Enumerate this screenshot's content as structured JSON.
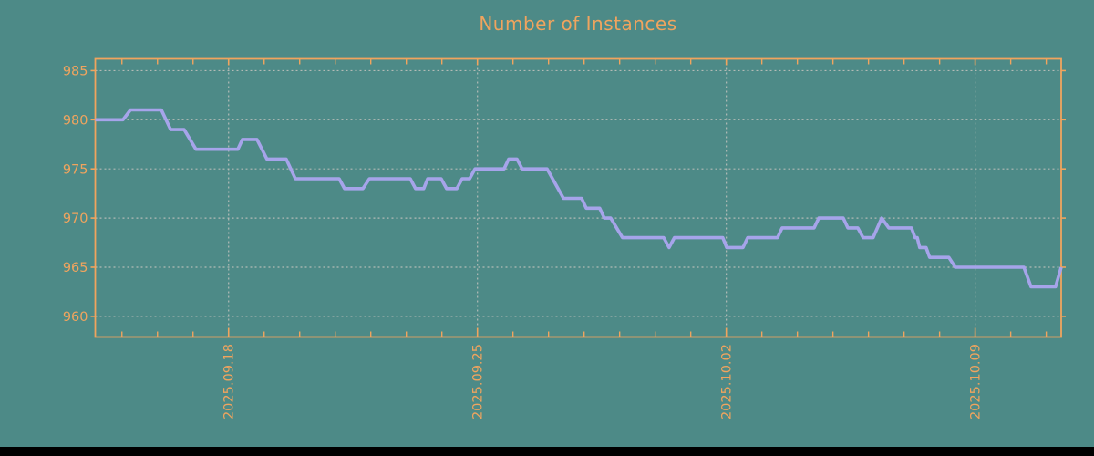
{
  "title": "Number of Instances",
  "colors": {
    "background": "#4d8a87",
    "accent": "#f0a45e",
    "line": "#a6a4ea",
    "grid": "#b9beb9",
    "footer_bar": "#000000"
  },
  "chart_data": {
    "type": "line",
    "title": "Number of Instances",
    "xlabel": "",
    "ylabel": "",
    "grid": true,
    "legend": false,
    "ylim": [
      957.9,
      986.2
    ],
    "y_ticks": [
      960,
      965,
      970,
      975,
      980,
      985
    ],
    "xlim_days": [
      0,
      27.17
    ],
    "x_tick_labels": [
      "2025.09.18",
      "2025.09.25",
      "2025.10.02",
      "2025.10.09"
    ],
    "x_label_positions_days": [
      3.75,
      10.75,
      17.75,
      24.75
    ],
    "x_minor_ticks_days": {
      "first_day": 0.75,
      "step": 1,
      "count": 27
    },
    "series": [
      {
        "name": "instances",
        "points": [
          [
            0.0,
            980
          ],
          [
            0.78,
            980
          ],
          [
            0.99,
            981
          ],
          [
            1.86,
            981
          ],
          [
            2.12,
            979
          ],
          [
            2.5,
            979
          ],
          [
            2.83,
            977
          ],
          [
            4.01,
            977
          ],
          [
            4.14,
            978
          ],
          [
            4.55,
            978
          ],
          [
            4.83,
            976
          ],
          [
            5.37,
            976
          ],
          [
            5.63,
            974
          ],
          [
            6.86,
            974
          ],
          [
            7.01,
            973
          ],
          [
            7.53,
            973
          ],
          [
            7.71,
            974
          ],
          [
            8.86,
            974
          ],
          [
            9.01,
            973
          ],
          [
            9.24,
            973
          ],
          [
            9.35,
            974
          ],
          [
            9.73,
            974
          ],
          [
            9.88,
            973
          ],
          [
            10.17,
            973
          ],
          [
            10.32,
            974
          ],
          [
            10.53,
            974
          ],
          [
            10.68,
            975
          ],
          [
            11.5,
            975
          ],
          [
            11.63,
            976
          ],
          [
            11.86,
            976
          ],
          [
            12.01,
            975
          ],
          [
            12.71,
            975
          ],
          [
            13.17,
            972
          ],
          [
            13.68,
            972
          ],
          [
            13.81,
            971
          ],
          [
            14.19,
            971
          ],
          [
            14.32,
            970
          ],
          [
            14.5,
            970
          ],
          [
            14.83,
            968
          ],
          [
            15.99,
            968
          ],
          [
            16.14,
            967
          ],
          [
            16.29,
            968
          ],
          [
            17.65,
            968
          ],
          [
            17.76,
            967
          ],
          [
            18.22,
            967
          ],
          [
            18.35,
            968
          ],
          [
            19.19,
            968
          ],
          [
            19.32,
            969
          ],
          [
            20.22,
            969
          ],
          [
            20.35,
            970
          ],
          [
            21.04,
            970
          ],
          [
            21.17,
            969
          ],
          [
            21.45,
            969
          ],
          [
            21.6,
            968
          ],
          [
            21.88,
            968
          ],
          [
            22.12,
            970
          ],
          [
            22.32,
            969
          ],
          [
            22.96,
            969
          ],
          [
            23.06,
            968
          ],
          [
            23.12,
            968
          ],
          [
            23.19,
            967
          ],
          [
            23.37,
            967
          ],
          [
            23.47,
            966
          ],
          [
            24.01,
            966
          ],
          [
            24.19,
            965
          ],
          [
            26.12,
            965
          ],
          [
            26.32,
            963
          ],
          [
            27.01,
            963
          ],
          [
            27.17,
            965
          ]
        ]
      }
    ]
  }
}
